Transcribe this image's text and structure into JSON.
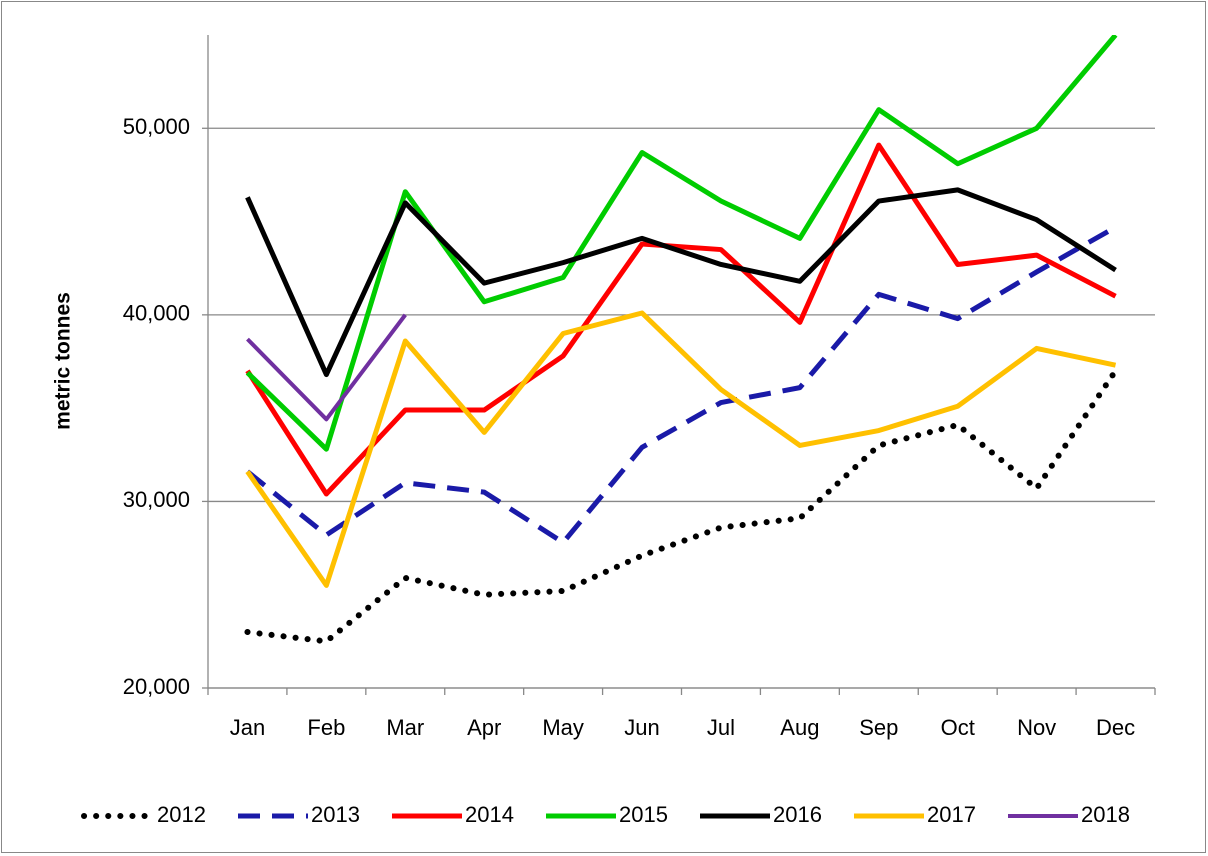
{
  "chart_data": {
    "type": "line",
    "y_label": "metric tonnes",
    "categories": [
      "Jan",
      "Feb",
      "Mar",
      "Apr",
      "May",
      "Jun",
      "Jul",
      "Aug",
      "Sep",
      "Oct",
      "Nov",
      "Dec"
    ],
    "ylim": [
      20000,
      55000
    ],
    "yticks": [
      {
        "value": 20000,
        "label": "20,000"
      },
      {
        "value": 30000,
        "label": "30,000"
      },
      {
        "value": 40000,
        "label": "40,000"
      },
      {
        "value": 50000,
        "label": "50,000"
      }
    ],
    "grid": true,
    "legend": "bottom",
    "series": [
      {
        "name": "2012",
        "color": "#000000",
        "dash": "dotted",
        "values": [
          23000,
          22500,
          25900,
          25000,
          25200,
          27100,
          28600,
          29100,
          33000,
          34100,
          30700,
          37000
        ]
      },
      {
        "name": "2013",
        "color": "#1a1aa8",
        "dash": "dashed",
        "values": [
          31600,
          28200,
          31000,
          30500,
          27800,
          32900,
          35300,
          36100,
          41100,
          39800,
          42300,
          44700
        ]
      },
      {
        "name": "2014",
        "color": "#ff0000",
        "dash": "solid",
        "values": [
          37000,
          30400,
          34900,
          34900,
          37800,
          43800,
          43500,
          39600,
          49100,
          42700,
          43200,
          41000
        ]
      },
      {
        "name": "2015",
        "color": "#00cc00",
        "dash": "solid",
        "values": [
          36900,
          32800,
          46600,
          40700,
          42000,
          48700,
          46100,
          44100,
          51000,
          48100,
          50000,
          55000
        ]
      },
      {
        "name": "2016",
        "color": "#000000",
        "dash": "solid",
        "values": [
          46300,
          36800,
          46000,
          41700,
          42800,
          44100,
          42700,
          41800,
          46100,
          46700,
          45100,
          42400
        ]
      },
      {
        "name": "2017",
        "color": "#ffc000",
        "dash": "solid",
        "values": [
          31600,
          25500,
          38600,
          33700,
          39000,
          40100,
          36000,
          33000,
          33800,
          35100,
          38200,
          37300
        ]
      },
      {
        "name": "2018",
        "color": "#7030a0",
        "dash": "thin",
        "values": [
          38700,
          34400,
          40000,
          null,
          null,
          null,
          null,
          null,
          null,
          null,
          null,
          null
        ]
      }
    ]
  }
}
